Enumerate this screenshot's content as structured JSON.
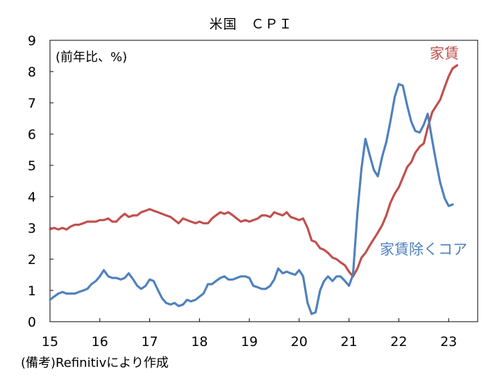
{
  "chart_data": {
    "type": "line",
    "title": "米国　ＣＰＩ",
    "unit_note": "(前年比、%)",
    "source": "(備考)Refinitivにより作成",
    "ylim": [
      0,
      9
    ],
    "yticks": [
      0,
      1,
      2,
      3,
      4,
      5,
      6,
      7,
      8,
      9
    ],
    "xlim": [
      2015.0,
      2023.583
    ],
    "xticks": [
      {
        "value": 2015,
        "label": "15"
      },
      {
        "value": 2016,
        "label": "16"
      },
      {
        "value": 2017,
        "label": "17"
      },
      {
        "value": 2018,
        "label": "18"
      },
      {
        "value": 2019,
        "label": "19"
      },
      {
        "value": 2020,
        "label": "20"
      },
      {
        "value": 2021,
        "label": "21"
      },
      {
        "value": 2022,
        "label": "22"
      },
      {
        "value": 2023,
        "label": "23"
      }
    ],
    "grid": false,
    "series": [
      {
        "name": "家賃",
        "color": "#c0504d",
        "points": [
          [
            2015.0,
            2.95
          ],
          [
            2015.08,
            3.0
          ],
          [
            2015.17,
            2.95
          ],
          [
            2015.25,
            3.0
          ],
          [
            2015.33,
            2.95
          ],
          [
            2015.42,
            3.05
          ],
          [
            2015.5,
            3.1
          ],
          [
            2015.58,
            3.1
          ],
          [
            2015.67,
            3.15
          ],
          [
            2015.75,
            3.2
          ],
          [
            2015.83,
            3.2
          ],
          [
            2015.92,
            3.2
          ],
          [
            2016.0,
            3.25
          ],
          [
            2016.08,
            3.25
          ],
          [
            2016.17,
            3.3
          ],
          [
            2016.25,
            3.2
          ],
          [
            2016.33,
            3.2
          ],
          [
            2016.42,
            3.35
          ],
          [
            2016.5,
            3.45
          ],
          [
            2016.58,
            3.35
          ],
          [
            2016.67,
            3.4
          ],
          [
            2016.75,
            3.4
          ],
          [
            2016.83,
            3.5
          ],
          [
            2016.92,
            3.55
          ],
          [
            2017.0,
            3.6
          ],
          [
            2017.08,
            3.55
          ],
          [
            2017.17,
            3.5
          ],
          [
            2017.25,
            3.45
          ],
          [
            2017.33,
            3.4
          ],
          [
            2017.42,
            3.35
          ],
          [
            2017.5,
            3.25
          ],
          [
            2017.58,
            3.15
          ],
          [
            2017.67,
            3.3
          ],
          [
            2017.75,
            3.25
          ],
          [
            2017.83,
            3.2
          ],
          [
            2017.92,
            3.15
          ],
          [
            2018.0,
            3.2
          ],
          [
            2018.08,
            3.15
          ],
          [
            2018.17,
            3.15
          ],
          [
            2018.25,
            3.3
          ],
          [
            2018.33,
            3.4
          ],
          [
            2018.42,
            3.5
          ],
          [
            2018.5,
            3.45
          ],
          [
            2018.58,
            3.5
          ],
          [
            2018.67,
            3.4
          ],
          [
            2018.75,
            3.3
          ],
          [
            2018.83,
            3.2
          ],
          [
            2018.92,
            3.25
          ],
          [
            2019.0,
            3.2
          ],
          [
            2019.08,
            3.25
          ],
          [
            2019.17,
            3.3
          ],
          [
            2019.25,
            3.4
          ],
          [
            2019.33,
            3.4
          ],
          [
            2019.42,
            3.35
          ],
          [
            2019.5,
            3.5
          ],
          [
            2019.58,
            3.45
          ],
          [
            2019.67,
            3.4
          ],
          [
            2019.75,
            3.5
          ],
          [
            2019.83,
            3.35
          ],
          [
            2019.92,
            3.3
          ],
          [
            2020.0,
            3.25
          ],
          [
            2020.08,
            3.3
          ],
          [
            2020.17,
            3.0
          ],
          [
            2020.25,
            2.6
          ],
          [
            2020.33,
            2.55
          ],
          [
            2020.42,
            2.35
          ],
          [
            2020.5,
            2.3
          ],
          [
            2020.58,
            2.2
          ],
          [
            2020.67,
            2.05
          ],
          [
            2020.75,
            2.0
          ],
          [
            2020.83,
            1.9
          ],
          [
            2020.92,
            1.8
          ],
          [
            2021.0,
            1.6
          ],
          [
            2021.08,
            1.45
          ],
          [
            2021.17,
            1.7
          ],
          [
            2021.25,
            2.05
          ],
          [
            2021.33,
            2.2
          ],
          [
            2021.42,
            2.45
          ],
          [
            2021.5,
            2.65
          ],
          [
            2021.58,
            2.85
          ],
          [
            2021.67,
            3.1
          ],
          [
            2021.75,
            3.4
          ],
          [
            2021.83,
            3.8
          ],
          [
            2021.92,
            4.1
          ],
          [
            2022.0,
            4.3
          ],
          [
            2022.08,
            4.6
          ],
          [
            2022.17,
            4.95
          ],
          [
            2022.25,
            5.1
          ],
          [
            2022.33,
            5.4
          ],
          [
            2022.42,
            5.6
          ],
          [
            2022.5,
            5.7
          ],
          [
            2022.58,
            6.2
          ],
          [
            2022.67,
            6.7
          ],
          [
            2022.75,
            6.9
          ],
          [
            2022.83,
            7.1
          ],
          [
            2022.92,
            7.5
          ],
          [
            2023.0,
            7.85
          ],
          [
            2023.08,
            8.1
          ],
          [
            2023.17,
            8.2
          ]
        ]
      },
      {
        "name": "家賃除くコア",
        "color": "#4f81bd",
        "points": [
          [
            2015.0,
            0.7
          ],
          [
            2015.08,
            0.8
          ],
          [
            2015.17,
            0.9
          ],
          [
            2015.25,
            0.95
          ],
          [
            2015.33,
            0.9
          ],
          [
            2015.42,
            0.9
          ],
          [
            2015.5,
            0.9
          ],
          [
            2015.58,
            0.95
          ],
          [
            2015.67,
            1.0
          ],
          [
            2015.75,
            1.05
          ],
          [
            2015.83,
            1.2
          ],
          [
            2015.92,
            1.3
          ],
          [
            2016.0,
            1.45
          ],
          [
            2016.08,
            1.65
          ],
          [
            2016.17,
            1.45
          ],
          [
            2016.25,
            1.4
          ],
          [
            2016.33,
            1.4
          ],
          [
            2016.42,
            1.35
          ],
          [
            2016.5,
            1.4
          ],
          [
            2016.58,
            1.55
          ],
          [
            2016.67,
            1.35
          ],
          [
            2016.75,
            1.15
          ],
          [
            2016.83,
            1.05
          ],
          [
            2016.92,
            1.15
          ],
          [
            2017.0,
            1.35
          ],
          [
            2017.08,
            1.3
          ],
          [
            2017.17,
            1.0
          ],
          [
            2017.25,
            0.75
          ],
          [
            2017.33,
            0.6
          ],
          [
            2017.42,
            0.55
          ],
          [
            2017.5,
            0.6
          ],
          [
            2017.58,
            0.5
          ],
          [
            2017.67,
            0.55
          ],
          [
            2017.75,
            0.7
          ],
          [
            2017.83,
            0.65
          ],
          [
            2017.92,
            0.7
          ],
          [
            2018.0,
            0.8
          ],
          [
            2018.08,
            0.9
          ],
          [
            2018.17,
            1.2
          ],
          [
            2018.25,
            1.2
          ],
          [
            2018.33,
            1.3
          ],
          [
            2018.42,
            1.4
          ],
          [
            2018.5,
            1.45
          ],
          [
            2018.58,
            1.35
          ],
          [
            2018.67,
            1.35
          ],
          [
            2018.75,
            1.4
          ],
          [
            2018.83,
            1.45
          ],
          [
            2018.92,
            1.45
          ],
          [
            2019.0,
            1.4
          ],
          [
            2019.08,
            1.15
          ],
          [
            2019.17,
            1.1
          ],
          [
            2019.25,
            1.05
          ],
          [
            2019.33,
            1.05
          ],
          [
            2019.42,
            1.15
          ],
          [
            2019.5,
            1.35
          ],
          [
            2019.58,
            1.7
          ],
          [
            2019.67,
            1.55
          ],
          [
            2019.75,
            1.6
          ],
          [
            2019.83,
            1.55
          ],
          [
            2019.92,
            1.5
          ],
          [
            2020.0,
            1.65
          ],
          [
            2020.08,
            1.45
          ],
          [
            2020.17,
            0.6
          ],
          [
            2020.25,
            0.25
          ],
          [
            2020.33,
            0.3
          ],
          [
            2020.42,
            1.0
          ],
          [
            2020.5,
            1.3
          ],
          [
            2020.58,
            1.45
          ],
          [
            2020.67,
            1.3
          ],
          [
            2020.75,
            1.45
          ],
          [
            2020.83,
            1.45
          ],
          [
            2020.92,
            1.3
          ],
          [
            2021.0,
            1.15
          ],
          [
            2021.08,
            1.5
          ],
          [
            2021.17,
            3.5
          ],
          [
            2021.25,
            4.9
          ],
          [
            2021.33,
            5.85
          ],
          [
            2021.42,
            5.3
          ],
          [
            2021.5,
            4.85
          ],
          [
            2021.58,
            4.65
          ],
          [
            2021.67,
            5.3
          ],
          [
            2021.75,
            5.75
          ],
          [
            2021.83,
            6.4
          ],
          [
            2021.92,
            7.2
          ],
          [
            2022.0,
            7.6
          ],
          [
            2022.08,
            7.55
          ],
          [
            2022.17,
            6.9
          ],
          [
            2022.25,
            6.4
          ],
          [
            2022.33,
            6.1
          ],
          [
            2022.42,
            6.05
          ],
          [
            2022.5,
            6.3
          ],
          [
            2022.58,
            6.65
          ],
          [
            2022.67,
            5.8
          ],
          [
            2022.75,
            5.1
          ],
          [
            2022.83,
            4.45
          ],
          [
            2022.92,
            3.95
          ],
          [
            2023.0,
            3.7
          ],
          [
            2023.08,
            3.75
          ]
        ]
      }
    ]
  }
}
